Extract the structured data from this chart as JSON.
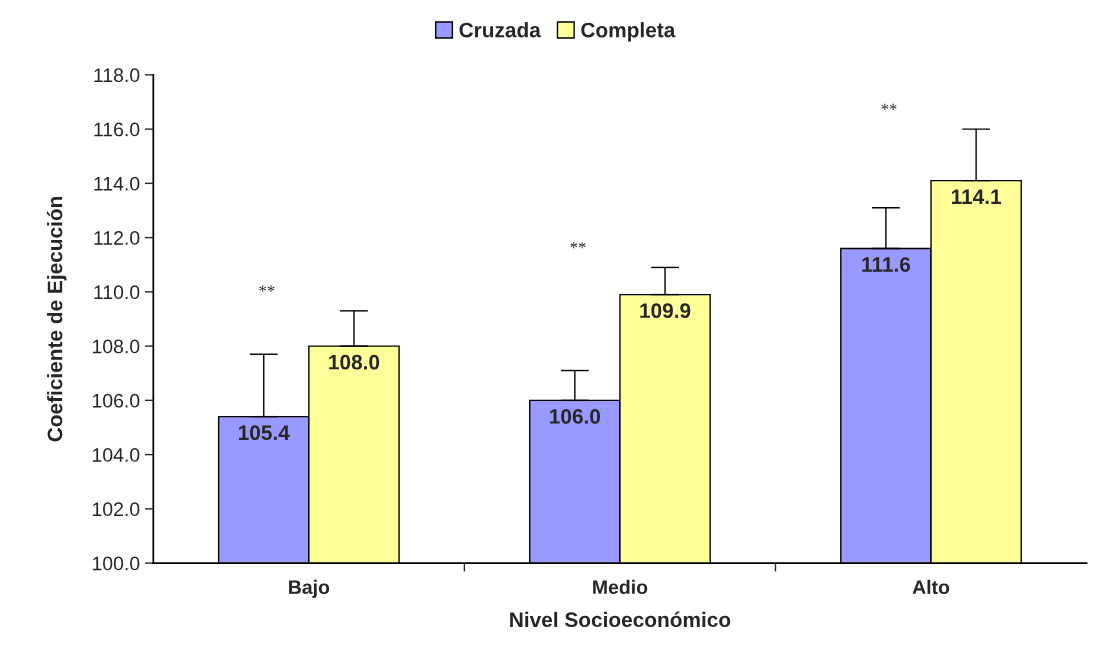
{
  "chart_data": {
    "type": "bar",
    "xlabel": "Nivel Socioeconómico",
    "ylabel": "Coeficiente de Ejecución",
    "categories": [
      "Bajo",
      "Medio",
      "Alto"
    ],
    "series": [
      {
        "name": "Cruzada",
        "color": "#9999ff",
        "values": [
          105.4,
          106.0,
          111.6
        ],
        "value_labels": [
          "105.4",
          "106.0",
          "111.6"
        ],
        "errors": [
          [
            105.4,
            107.7
          ],
          [
            106.0,
            107.1
          ],
          [
            111.6,
            113.1
          ]
        ]
      },
      {
        "name": "Completa",
        "color": "#ffff99",
        "values": [
          108.0,
          109.9,
          114.1
        ],
        "value_labels": [
          "108.0",
          "109.9",
          "114.1"
        ],
        "errors": [
          [
            108.0,
            109.3
          ],
          [
            109.9,
            110.9
          ],
          [
            114.1,
            116.0
          ]
        ]
      }
    ],
    "ylim": [
      100,
      118
    ],
    "yticks": [
      {
        "value": 100,
        "label": "100.0"
      },
      {
        "value": 102,
        "label": "102.0"
      },
      {
        "value": 104,
        "label": "104.0"
      },
      {
        "value": 106,
        "label": "106.0"
      },
      {
        "value": 108,
        "label": "108.0"
      },
      {
        "value": 110,
        "label": "110.0"
      },
      {
        "value": 112,
        "label": "112.0"
      },
      {
        "value": 114,
        "label": "114.0"
      },
      {
        "value": 116,
        "label": "116.0"
      },
      {
        "value": 118,
        "label": "118.0"
      }
    ],
    "annotations": [
      "**",
      "**",
      "**"
    ],
    "grid": false,
    "legend": "top"
  }
}
